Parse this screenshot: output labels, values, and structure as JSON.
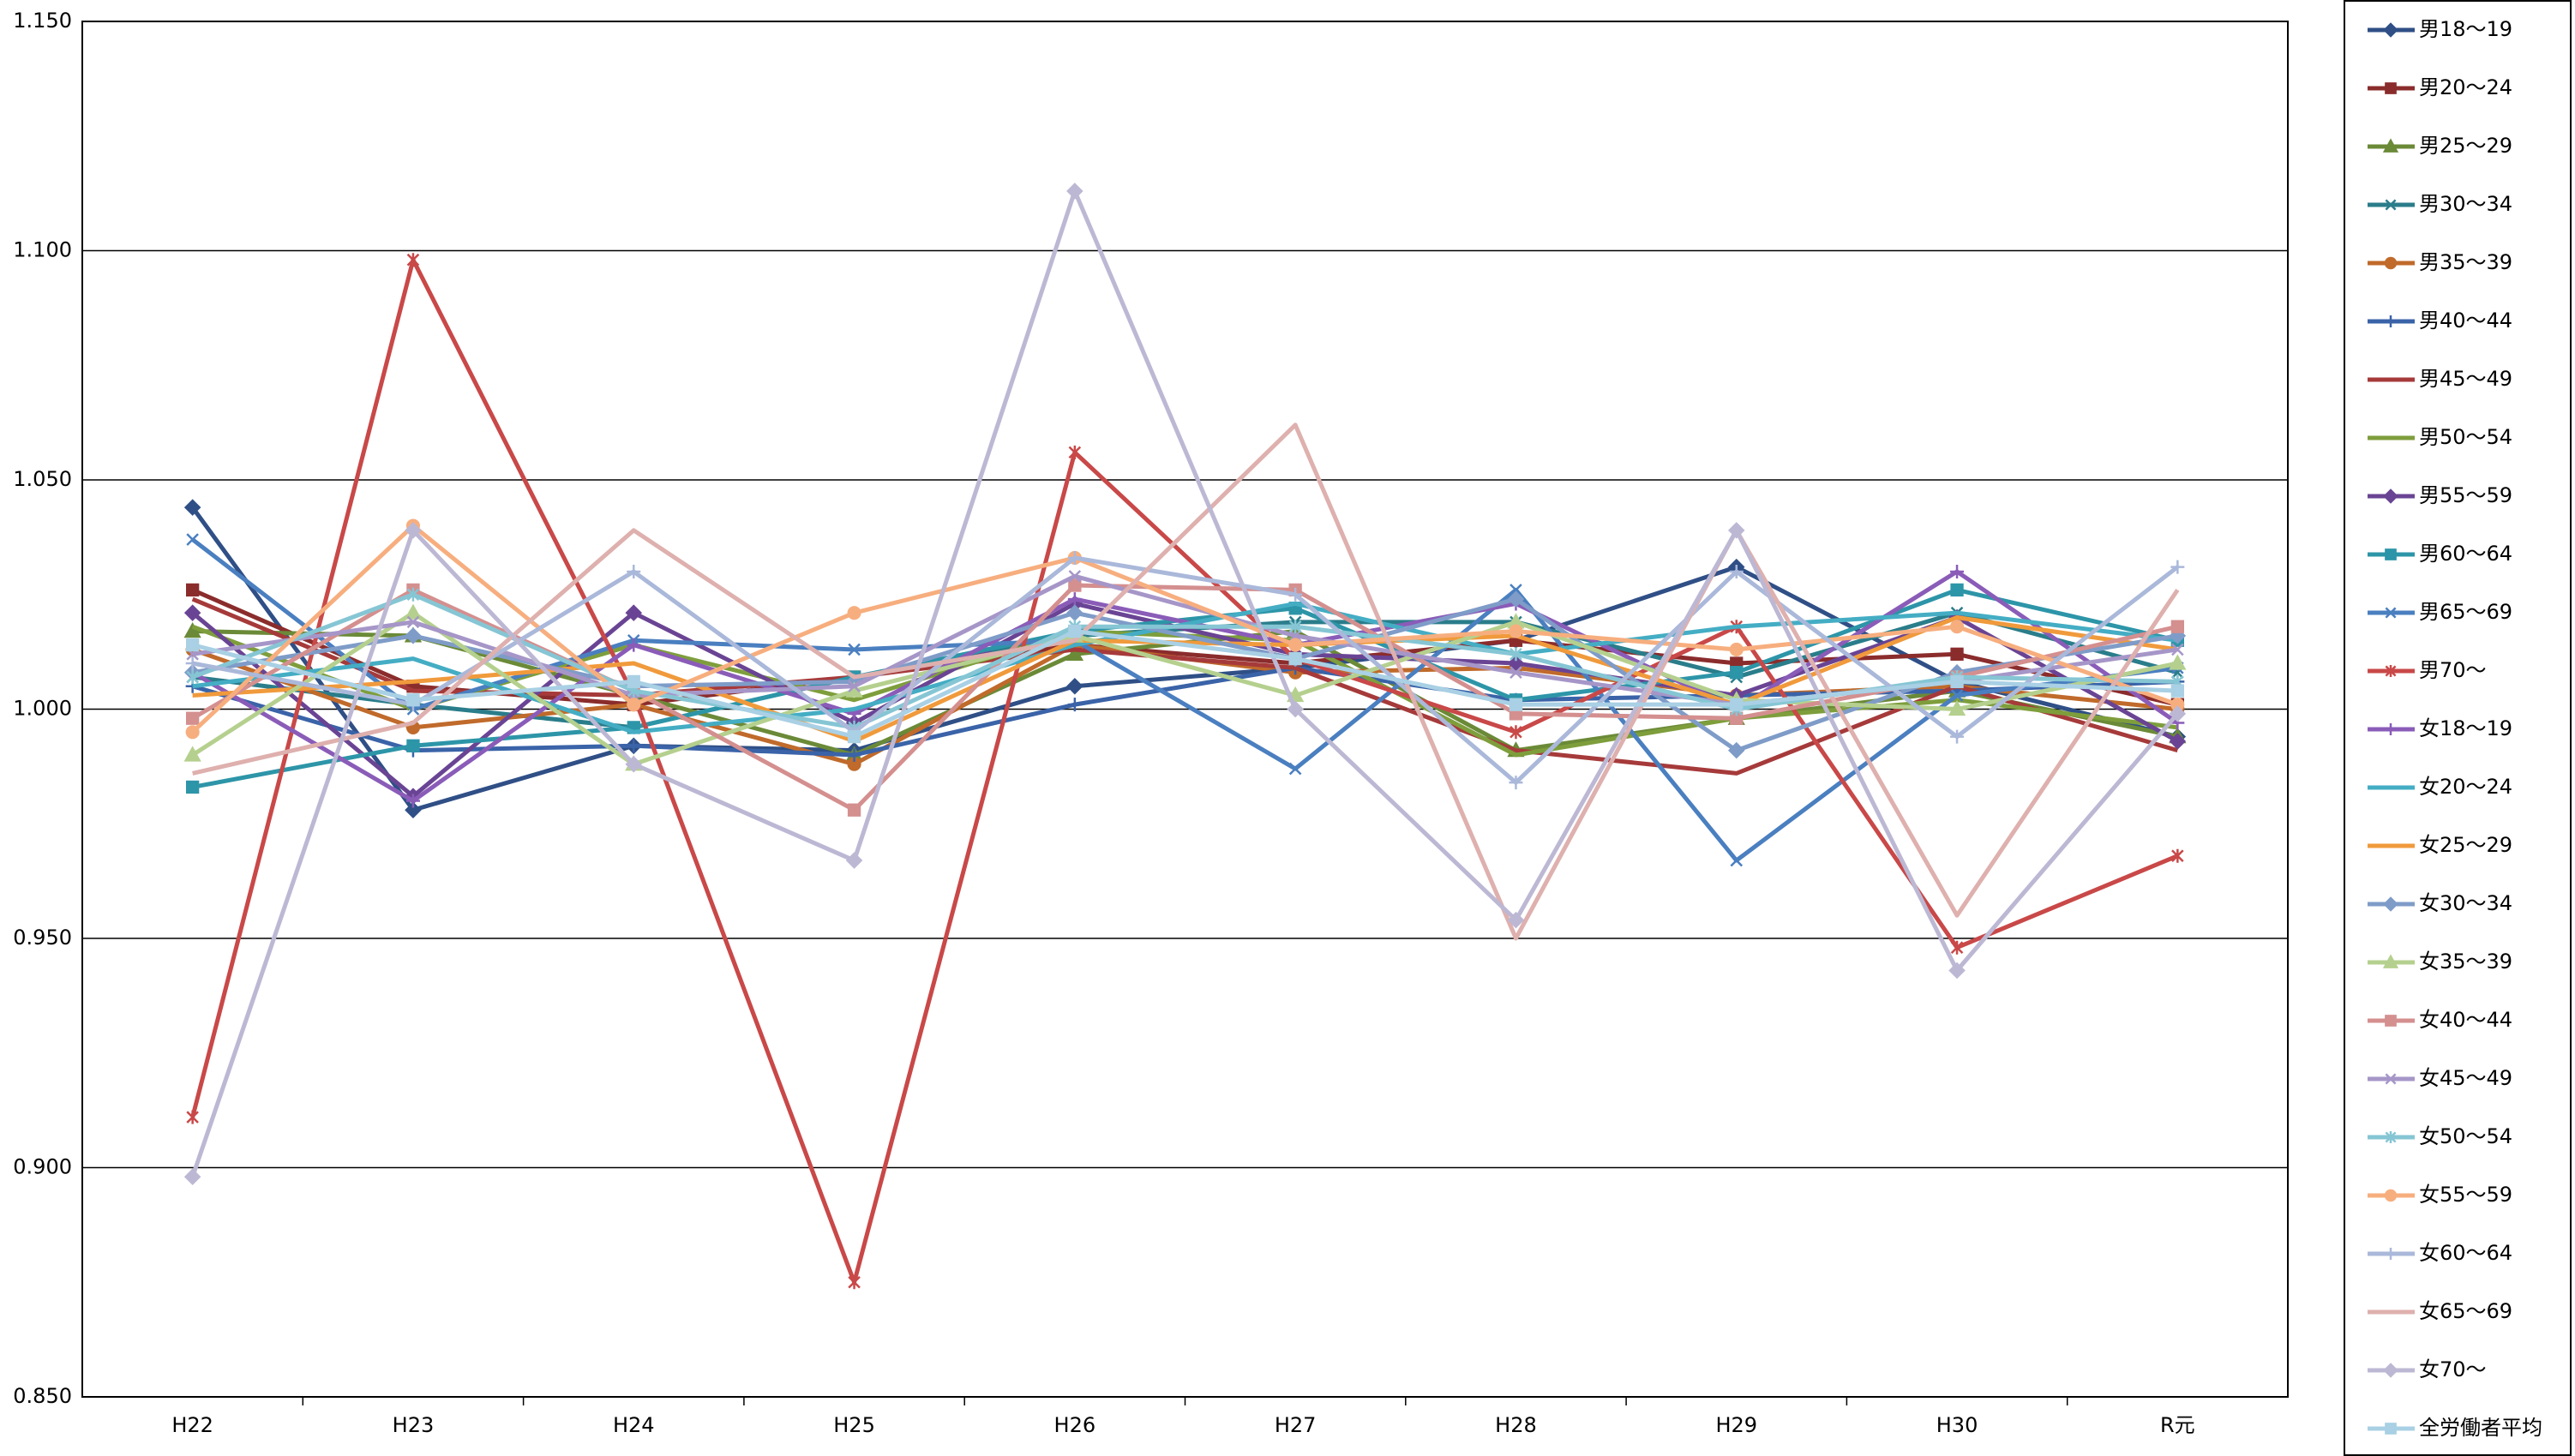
{
  "chart_data": {
    "type": "line",
    "categories": [
      "H22",
      "H23",
      "H24",
      "H25",
      "H26",
      "H27",
      "H28",
      "H29",
      "H30",
      "R元"
    ],
    "ylim": [
      0.85,
      1.15
    ],
    "yticks": [
      {
        "value": 0.85,
        "label": "0.850"
      },
      {
        "value": 0.9,
        "label": "0.900"
      },
      {
        "value": 0.95,
        "label": "0.950"
      },
      {
        "value": 1.0,
        "label": "1.000"
      },
      {
        "value": 1.05,
        "label": "1.050"
      },
      {
        "value": 1.1,
        "label": "1.100"
      },
      {
        "value": 1.15,
        "label": "1.150"
      }
    ],
    "grid": true,
    "legend": "right",
    "series": [
      {
        "name": "男18～19",
        "color": "#2f4f86",
        "marker": "diamond",
        "values": [
          1.044,
          0.978,
          0.992,
          0.991,
          1.005,
          1.009,
          1.015,
          1.031,
          1.006,
          0.994
        ]
      },
      {
        "name": "男20～24",
        "color": "#8b2c2c",
        "marker": "square",
        "values": [
          1.026,
          1.005,
          1.001,
          1.007,
          1.014,
          1.01,
          1.015,
          1.01,
          1.012,
          1.001
        ]
      },
      {
        "name": "男25～29",
        "color": "#6b8a38",
        "marker": "triangle",
        "values": [
          1.017,
          1.016,
          1.003,
          0.99,
          1.012,
          1.017,
          0.991,
          0.998,
          1.004,
          0.994
        ]
      },
      {
        "name": "男30～34",
        "color": "#2a7d8a",
        "marker": "x",
        "values": [
          1.007,
          1.001,
          0.996,
          1.007,
          1.016,
          1.019,
          1.019,
          1.007,
          1.021,
          1.008
        ]
      },
      {
        "name": "男35～39",
        "color": "#c06a2b",
        "marker": "circle",
        "values": [
          1.013,
          0.996,
          1.001,
          0.988,
          1.014,
          1.008,
          1.009,
          1.003,
          1.005,
          1.0
        ]
      },
      {
        "name": "男40～44",
        "color": "#3a63a8",
        "marker": "plus",
        "values": [
          1.005,
          0.991,
          0.992,
          0.99,
          1.001,
          1.009,
          1.002,
          1.003,
          1.004,
          1.006
        ]
      },
      {
        "name": "男45～49",
        "color": "#a63a3a",
        "marker": "none",
        "values": [
          1.024,
          1.004,
          1.003,
          1.007,
          1.013,
          1.009,
          0.991,
          0.986,
          1.005,
          0.991
        ]
      },
      {
        "name": "男50～54",
        "color": "#7e9e3c",
        "marker": "none",
        "values": [
          1.018,
          1.0,
          1.014,
          1.002,
          1.017,
          1.015,
          0.99,
          0.998,
          1.002,
          0.996
        ]
      },
      {
        "name": "男55～59",
        "color": "#6a4494",
        "marker": "diamond",
        "values": [
          1.021,
          0.981,
          1.021,
          0.997,
          1.023,
          1.012,
          1.01,
          1.003,
          1.02,
          0.993
        ]
      },
      {
        "name": "男60～64",
        "color": "#2d95a8",
        "marker": "square",
        "values": [
          0.983,
          0.992,
          0.996,
          1.007,
          1.017,
          1.022,
          1.002,
          1.008,
          1.026,
          1.015
        ]
      },
      {
        "name": "男65～69",
        "color": "#4a7fc0",
        "marker": "x",
        "values": [
          1.037,
          1.0,
          1.015,
          1.013,
          1.015,
          0.987,
          1.026,
          0.967,
          1.003,
          1.009
        ]
      },
      {
        "name": "男70～",
        "color": "#c94848",
        "marker": "star",
        "values": [
          0.911,
          1.098,
          1.003,
          0.875,
          1.056,
          1.011,
          0.995,
          1.018,
          0.948,
          0.968
        ]
      },
      {
        "name": "女18～19",
        "color": "#8a5cb8",
        "marker": "plus",
        "values": [
          1.008,
          0.98,
          1.014,
          0.999,
          1.024,
          1.014,
          1.023,
          1.0,
          1.03,
          0.997
        ]
      },
      {
        "name": "女20～24",
        "color": "#44adc4",
        "marker": "none",
        "values": [
          1.005,
          1.011,
          0.995,
          1.0,
          1.014,
          1.023,
          1.012,
          1.018,
          1.021,
          1.015
        ]
      },
      {
        "name": "女25～29",
        "color": "#f09a3c",
        "marker": "none",
        "values": [
          1.003,
          1.006,
          1.01,
          0.993,
          1.015,
          1.014,
          1.016,
          1.001,
          1.02,
          1.013
        ]
      },
      {
        "name": "女30～34",
        "color": "#7f9cc8",
        "marker": "diamond",
        "values": [
          1.008,
          1.016,
          1.005,
          1.006,
          1.021,
          1.011,
          1.024,
          0.991,
          1.008,
          1.016
        ]
      },
      {
        "name": "女35～39",
        "color": "#b5d08e",
        "marker": "triangle",
        "values": [
          0.99,
          1.021,
          0.988,
          1.004,
          1.016,
          1.003,
          1.019,
          1.002,
          1.0,
          1.01
        ]
      },
      {
        "name": "女40～44",
        "color": "#d48f8f",
        "marker": "square",
        "values": [
          0.998,
          1.026,
          1.004,
          0.978,
          1.027,
          1.026,
          0.999,
          0.998,
          1.007,
          1.018
        ]
      },
      {
        "name": "女45～49",
        "color": "#a696c8",
        "marker": "x",
        "values": [
          1.012,
          1.019,
          1.003,
          1.005,
          1.029,
          1.016,
          1.008,
          1.001,
          1.006,
          1.013
        ]
      },
      {
        "name": "女50～54",
        "color": "#86c6d4",
        "marker": "star",
        "values": [
          1.007,
          1.025,
          1.004,
          0.996,
          1.018,
          1.018,
          1.012,
          1.0,
          1.007,
          1.006
        ]
      },
      {
        "name": "女55～59",
        "color": "#f7ae7e",
        "marker": "circle",
        "values": [
          0.995,
          1.04,
          1.001,
          1.021,
          1.033,
          1.014,
          1.017,
          1.013,
          1.018,
          1.001
        ]
      },
      {
        "name": "女60～64",
        "color": "#aab8da",
        "marker": "plus",
        "values": [
          1.01,
          1.001,
          1.03,
          0.995,
          1.033,
          1.025,
          0.984,
          1.03,
          0.994,
          1.031
        ]
      },
      {
        "name": "女65～69",
        "color": "#deb0ae",
        "marker": "none",
        "values": [
          0.986,
          0.997,
          1.039,
          1.007,
          1.015,
          1.062,
          0.95,
          1.039,
          0.955,
          1.026
        ]
      },
      {
        "name": "女70～",
        "color": "#bcb8d4",
        "marker": "diamond",
        "values": [
          0.898,
          1.039,
          0.988,
          0.967,
          1.113,
          1.0,
          0.954,
          1.039,
          0.943,
          0.999
        ]
      },
      {
        "name": "全労働者平均",
        "color": "#a9d0e4",
        "marker": "square",
        "values": [
          1.014,
          1.002,
          1.006,
          0.994,
          1.017,
          1.011,
          1.001,
          1.001,
          1.006,
          1.004
        ]
      }
    ]
  }
}
